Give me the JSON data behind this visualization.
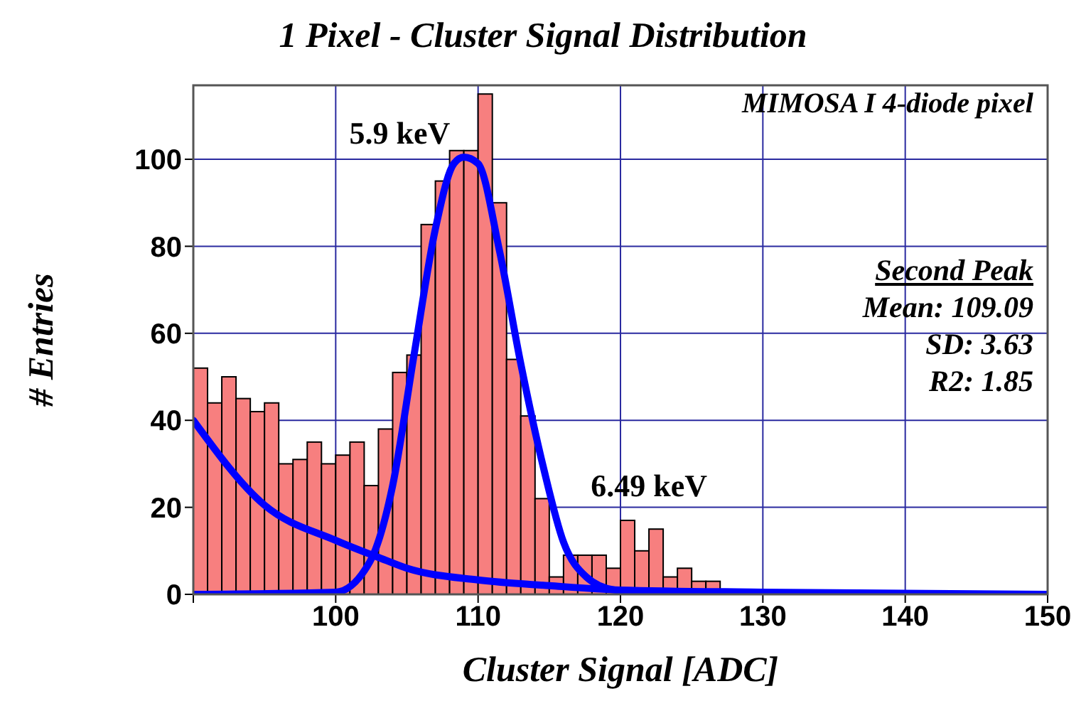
{
  "chart_data": {
    "type": "histogram",
    "title": "1 Pixel - Cluster Signal Distribution",
    "xlabel": "Cluster Signal [ADC]",
    "ylabel": "# Entries",
    "bins": [
      90,
      91,
      92,
      93,
      94,
      95,
      96,
      97,
      98,
      99,
      100,
      101,
      102,
      103,
      104,
      105,
      106,
      107,
      108,
      109,
      110,
      111,
      112,
      113,
      114,
      115,
      116,
      117,
      118,
      119,
      120,
      121,
      122,
      123,
      124,
      125,
      126,
      127
    ],
    "values": [
      52,
      44,
      50,
      45,
      42,
      44,
      30,
      31,
      35,
      30,
      32,
      35,
      25,
      38,
      51,
      55,
      85,
      95,
      102,
      102,
      115,
      90,
      54,
      41,
      22,
      4,
      9,
      9,
      9,
      6,
      17,
      10,
      15,
      4,
      6,
      3,
      3
    ],
    "color": "#f77f7f",
    "series": [
      {
        "type": "line",
        "color": "#0000ff",
        "x": [
          90,
          100,
          102.4,
          104,
          105.5,
          107,
          108.3,
          109,
          110,
          111.5,
          113,
          114.6,
          116,
          117.6,
          119.6,
          125,
          150
        ],
        "values": [
          0,
          0.5,
          7.5,
          25,
          55,
          84,
          99,
          100.5,
          99,
          79,
          53,
          29,
          12,
          4,
          1,
          0,
          0
        ]
      },
      {
        "type": "line",
        "color": "#0000ff",
        "x": [
          90,
          95,
          100,
          103,
          105,
          110,
          115,
          120,
          130,
          150
        ],
        "values": [
          40,
          20.5,
          12.4,
          8.5,
          6,
          3.3,
          2,
          1,
          0.5,
          0
        ]
      }
    ],
    "xlim": [
      90,
      150
    ],
    "xticks": [
      {
        "value": 90,
        "label": null
      },
      100,
      110,
      120,
      130,
      140,
      150
    ],
    "ylim": [
      0,
      117
    ],
    "yticks": [
      0,
      20,
      40,
      60,
      80,
      100
    ],
    "grid": true,
    "legend": false,
    "annotations": [
      "5.9 keV",
      "6.49 keV",
      "MIMOSA I 4-diode pixel",
      "Second Peak",
      "Mean: 109.09",
      "SD: 3.63",
      "R2: 1.85"
    ]
  }
}
